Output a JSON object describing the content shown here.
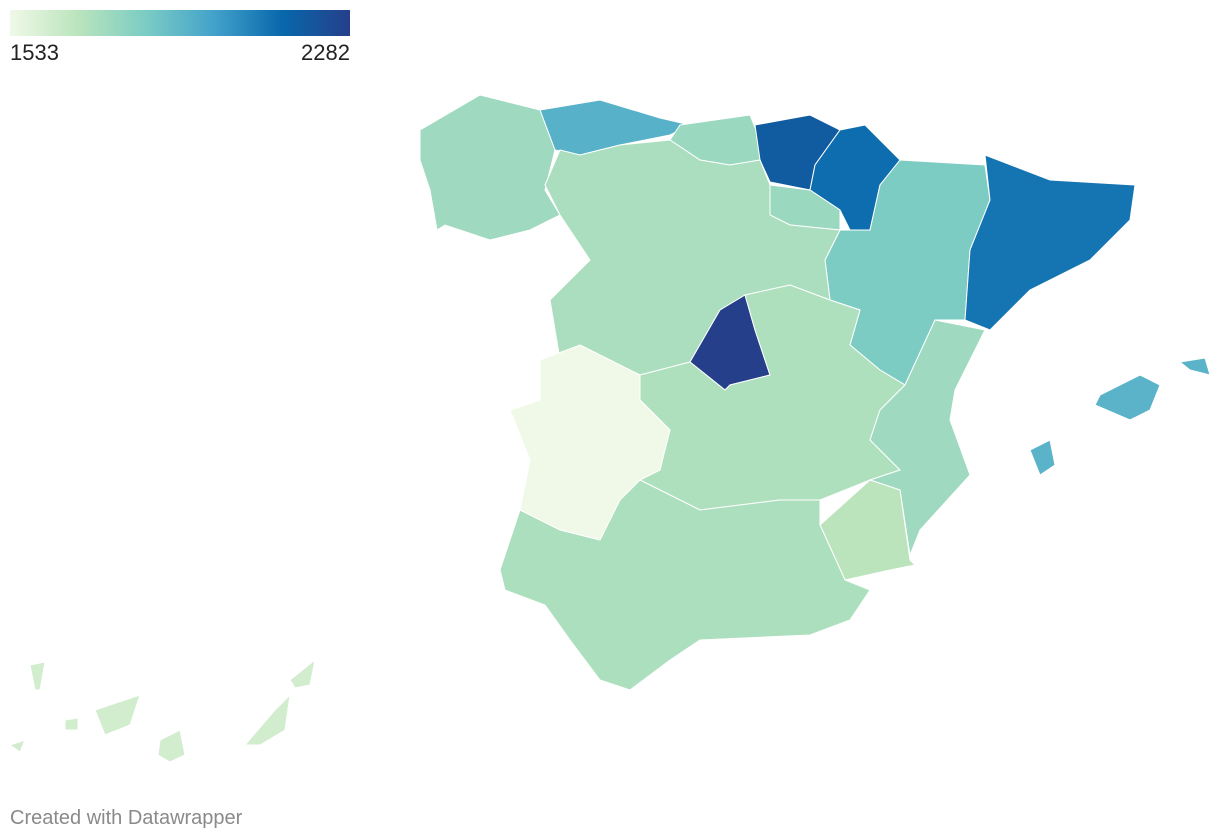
{
  "legend": {
    "min": 1533,
    "max": 2282,
    "colors": [
      "#f0f9e8",
      "#bae4bc",
      "#7bccc4",
      "#43a2ca",
      "#0868ac",
      "#253f8a"
    ]
  },
  "map": {
    "values": [
      1750,
      1930,
      1760,
      2180,
      2120,
      1760,
      1830,
      2100,
      1720,
      2282,
      1710,
      1533,
      1750,
      1680,
      1715,
      1920,
      1620
    ]
  },
  "footer": "Created with Datawrapper"
}
